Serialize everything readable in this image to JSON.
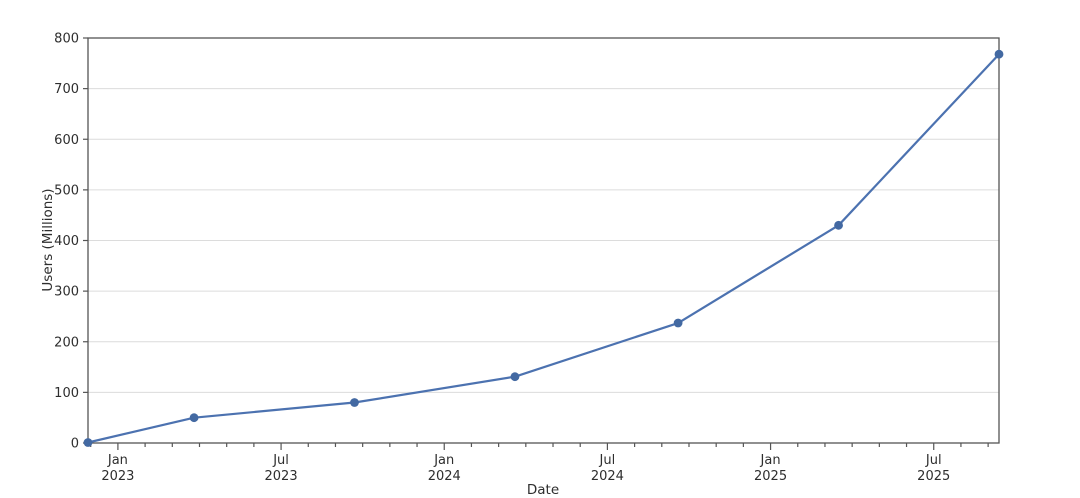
{
  "chart_data": {
    "type": "line",
    "title": "",
    "xlabel": "Date",
    "ylabel": "Users (Millions)",
    "legend": "none",
    "grid": "horizontal",
    "ylim": [
      0,
      800
    ],
    "yticks": [
      0,
      100,
      200,
      300,
      400,
      500,
      600,
      700,
      800
    ],
    "xlim_months_from_jan_2023": [
      -1.1,
      32.4
    ],
    "xticks_major": [
      {
        "x_months": 0,
        "line1": "Jan",
        "line2": "2023"
      },
      {
        "x_months": 6,
        "line1": "Jul",
        "line2": "2023"
      },
      {
        "x_months": 12,
        "line1": "Jan",
        "line2": "2024"
      },
      {
        "x_months": 18,
        "line1": "Jul",
        "line2": "2024"
      },
      {
        "x_months": 24,
        "line1": "Jan",
        "line2": "2025"
      },
      {
        "x_months": 30,
        "line1": "Jul",
        "line2": "2025"
      }
    ],
    "minor_ticks": "monthly",
    "series": [
      {
        "name": "Users (Millions)",
        "points": [
          {
            "date": "Dec 2022",
            "x_months": -1.1,
            "value": 1
          },
          {
            "date": "Mar 2023",
            "x_months": 2.8,
            "value": 50
          },
          {
            "date": "Sep 2023",
            "x_months": 8.7,
            "value": 80
          },
          {
            "date": "Mar 2024",
            "x_months": 14.6,
            "value": 131
          },
          {
            "date": "Sep 2024",
            "x_months": 20.6,
            "value": 237
          },
          {
            "date": "Mar 2025",
            "x_months": 26.5,
            "value": 430
          },
          {
            "date": "Sep 2025",
            "x_months": 32.4,
            "value": 768
          }
        ]
      }
    ],
    "colors": {
      "line": "#4C72B0",
      "marker": "#4369A2",
      "grid": "#DCDCDC",
      "spine": "#555555",
      "text": "#2E2E2E",
      "background": "#FFFFFF"
    }
  }
}
